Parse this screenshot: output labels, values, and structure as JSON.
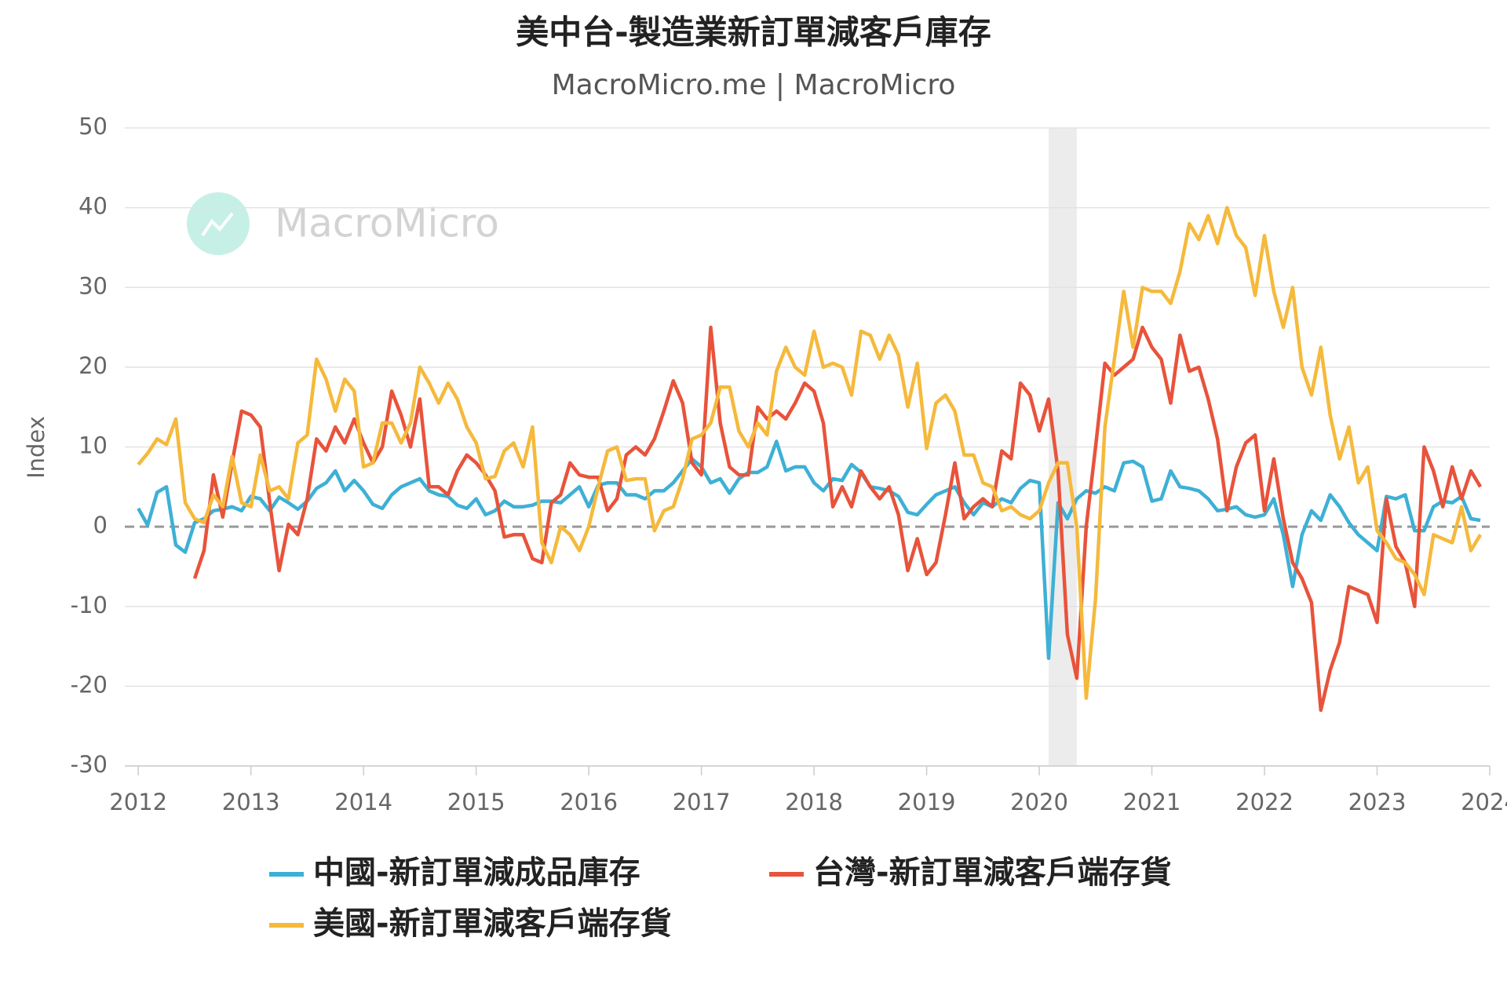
{
  "chart_data": {
    "type": "line",
    "title": "美中台-製造業新訂單減客戶庫存",
    "subtitle": "MacroMicro.me | MacroMicro",
    "watermark": "MacroMicro",
    "ylabel": "Index",
    "x": [
      2012,
      2012.083,
      2012.167,
      2012.25,
      2012.333,
      2012.417,
      2012.5,
      2012.583,
      2012.667,
      2012.75,
      2012.833,
      2012.917,
      2013,
      2013.083,
      2013.167,
      2013.25,
      2013.333,
      2013.417,
      2013.5,
      2013.583,
      2013.667,
      2013.75,
      2013.833,
      2013.917,
      2014,
      2014.083,
      2014.167,
      2014.25,
      2014.333,
      2014.417,
      2014.5,
      2014.583,
      2014.667,
      2014.75,
      2014.833,
      2014.917,
      2015,
      2015.083,
      2015.167,
      2015.25,
      2015.333,
      2015.417,
      2015.5,
      2015.583,
      2015.667,
      2015.75,
      2015.833,
      2015.917,
      2016,
      2016.083,
      2016.167,
      2016.25,
      2016.333,
      2016.417,
      2016.5,
      2016.583,
      2016.667,
      2016.75,
      2016.833,
      2016.917,
      2017,
      2017.083,
      2017.167,
      2017.25,
      2017.333,
      2017.417,
      2017.5,
      2017.583,
      2017.667,
      2017.75,
      2017.833,
      2017.917,
      2018,
      2018.083,
      2018.167,
      2018.25,
      2018.333,
      2018.417,
      2018.5,
      2018.583,
      2018.667,
      2018.75,
      2018.833,
      2018.917,
      2019,
      2019.083,
      2019.167,
      2019.25,
      2019.333,
      2019.417,
      2019.5,
      2019.583,
      2019.667,
      2019.75,
      2019.833,
      2019.917,
      2020,
      2020.083,
      2020.167,
      2020.25,
      2020.333,
      2020.417,
      2020.5,
      2020.583,
      2020.667,
      2020.75,
      2020.833,
      2020.917,
      2021,
      2021.083,
      2021.167,
      2021.25,
      2021.333,
      2021.417,
      2021.5,
      2021.583,
      2021.667,
      2021.75,
      2021.833,
      2021.917,
      2022,
      2022.083,
      2022.167,
      2022.25,
      2022.333,
      2022.417,
      2022.5,
      2022.583,
      2022.667,
      2022.75,
      2022.833,
      2022.917,
      2023,
      2023.083,
      2023.167,
      2023.25,
      2023.333,
      2023.417,
      2023.5,
      2023.583,
      2023.667,
      2023.75,
      2023.833,
      2023.917
    ],
    "series": [
      {
        "name": "中國-新訂單減成品庫存",
        "color": "#3eb0d5",
        "values": [
          2.3,
          0.2,
          4.3,
          5.0,
          -2.3,
          -3.2,
          0.5,
          1.0,
          2.0,
          2.2,
          2.5,
          2.0,
          3.8,
          3.5,
          2.0,
          3.7,
          3.0,
          2.2,
          3.2,
          4.8,
          5.5,
          7.0,
          4.5,
          5.8,
          4.5,
          2.8,
          2.3,
          4.0,
          5.0,
          5.5,
          6.0,
          4.5,
          4.0,
          3.8,
          2.7,
          2.3,
          3.5,
          1.5,
          2.0,
          3.2,
          2.5,
          2.5,
          2.7,
          3.2,
          3.2,
          3.0,
          4.0,
          5.0,
          2.5,
          5.2,
          5.5,
          5.5,
          4.0,
          4.0,
          3.5,
          4.5,
          4.5,
          5.5,
          7.0,
          8.5,
          7.5,
          5.5,
          6.0,
          4.2,
          6.0,
          6.8,
          6.8,
          7.5,
          10.7,
          7.0,
          7.5,
          7.5,
          5.5,
          4.5,
          6.0,
          5.8,
          7.8,
          6.8,
          5.0,
          4.8,
          4.5,
          3.8,
          1.8,
          1.5,
          2.8,
          4.0,
          4.5,
          5.0,
          3.0,
          1.5,
          3.0,
          2.5,
          3.5,
          3.0,
          4.8,
          5.8,
          5.5,
          -16.5,
          3.0,
          1.0,
          3.5,
          4.5,
          4.2,
          5.0,
          4.5,
          8.0,
          8.2,
          7.5,
          3.2,
          3.5,
          7.0,
          5.0,
          4.8,
          4.5,
          3.5,
          2.0,
          2.2,
          2.5,
          1.5,
          1.2,
          1.5,
          3.5,
          -1.0,
          -7.5,
          -1.0,
          2.0,
          0.8,
          4.0,
          2.5,
          0.5,
          -1.0,
          -2.0,
          -3.0,
          3.8,
          3.5,
          4.0,
          -0.5,
          -0.5,
          2.5,
          3.2,
          3.0,
          3.8,
          1.0,
          0.8
        ]
      },
      {
        "name": "台灣-新訂單減客戶端存貨",
        "color": "#e8533b",
        "values": [
          null,
          null,
          null,
          null,
          null,
          null,
          -6.5,
          -3,
          6.5,
          1.2,
          8,
          14.5,
          14,
          12.5,
          3,
          -5.5,
          0.3,
          -1,
          3.5,
          11,
          9.5,
          12.5,
          10.5,
          13.5,
          10.5,
          8,
          10,
          17,
          14,
          10,
          16,
          5,
          5,
          4,
          7,
          9,
          8,
          6.5,
          4.5,
          -1.3,
          -1,
          -1,
          -4,
          -4.5,
          3,
          4,
          8,
          6.5,
          6.2,
          6.2,
          2,
          3.5,
          9,
          10,
          9,
          11,
          14.5,
          18.3,
          15.5,
          8,
          6.5,
          25,
          13,
          7.5,
          6.5,
          6.5,
          15,
          13.5,
          14.5,
          13.5,
          15.5,
          18,
          17,
          13,
          2.5,
          5,
          2.5,
          7,
          5,
          3.5,
          5,
          1.5,
          -5.5,
          -1.5,
          -6,
          -4.5,
          1.5,
          8,
          1,
          2.5,
          3.5,
          2.5,
          9.5,
          8.5,
          18,
          16.5,
          12,
          16,
          7,
          -13.5,
          -19,
          0,
          10,
          20.5,
          19,
          20,
          21,
          25,
          22.5,
          21,
          15.5,
          24,
          19.5,
          20,
          16,
          11,
          2,
          7.5,
          10.5,
          11.5,
          2,
          8.5,
          1,
          -4.5,
          -6.5,
          -9.5,
          -23,
          -18,
          -14.5,
          -7.5,
          -8,
          -8.5,
          -12,
          3.5,
          -2.5,
          -4.5,
          -10,
          10,
          7,
          2.5,
          7.5,
          3.5,
          7,
          5
        ]
      },
      {
        "name": "美國-新訂單減客戶端存貨",
        "color": "#f5b93c",
        "values": [
          7.8,
          9.2,
          11,
          10.3,
          13.5,
          3,
          1,
          0.5,
          4,
          2.5,
          8.8,
          3,
          2.5,
          9,
          4.5,
          5,
          3.5,
          10.5,
          11.5,
          21,
          18.5,
          14.5,
          18.5,
          17,
          7.5,
          8,
          13,
          13,
          10.5,
          13,
          20,
          18,
          15.5,
          18,
          16,
          12.5,
          10.5,
          6,
          6.3,
          9.5,
          10.5,
          7.5,
          12.5,
          -2,
          -4.5,
          0,
          -1,
          -3,
          0,
          5,
          9.5,
          10,
          5.8,
          6,
          6,
          -0.5,
          2,
          2.5,
          6,
          11,
          11.5,
          13,
          17.5,
          17.5,
          12,
          10,
          13,
          11.5,
          19.5,
          22.5,
          20,
          19,
          24.5,
          20,
          20.5,
          20,
          16.5,
          24.5,
          24,
          21,
          24,
          21.5,
          15,
          20.5,
          9.8,
          15.5,
          16.5,
          14.5,
          9,
          9,
          5.5,
          5,
          2,
          2.5,
          1.5,
          1,
          2,
          5.5,
          8,
          8,
          0,
          -21.5,
          -9,
          12.5,
          21,
          29.5,
          22.5,
          30,
          29.5,
          29.5,
          28,
          32,
          38,
          36,
          39,
          35.5,
          40,
          36.5,
          35,
          29,
          36.5,
          29.5,
          25,
          30,
          20,
          16.5,
          22.5,
          14,
          8.5,
          12.5,
          5.5,
          7.5,
          -0.5,
          -2,
          -4,
          -4.5,
          -6,
          -8.5,
          -1,
          -1.5,
          -2,
          2.5,
          -3,
          -1
        ]
      }
    ],
    "highlight": [
      2020.083,
      2020.333
    ],
    "xlim": [
      2011.88,
      2024.0
    ],
    "xticks": [
      2012,
      2013,
      2014,
      2015,
      2016,
      2017,
      2018,
      2019,
      2020,
      2021,
      2022,
      2023,
      2024
    ],
    "ylim": [
      -30,
      50
    ],
    "yticks": [
      -30,
      -20,
      -10,
      0,
      10,
      20,
      30,
      40,
      50
    ],
    "grid": true
  }
}
